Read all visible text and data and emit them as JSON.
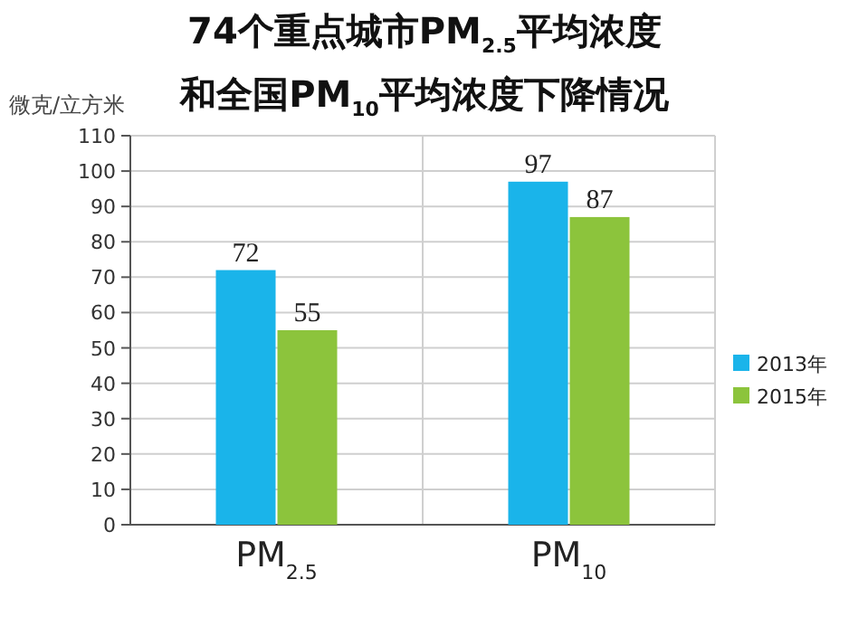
{
  "chart_data": {
    "type": "bar",
    "title": "74个重点城市PM$_{2.5}$平均浓度和全国PM$_{10}$平均浓度下降情况",
    "ylabel": "微克/立方米",
    "categories": [
      "PM$_{2.5}$",
      "PM$_{10}$"
    ],
    "series": [
      {
        "name": "2013年",
        "color": "#1ab4ea",
        "values": [
          72,
          97
        ]
      },
      {
        "name": "2015年",
        "color": "#8cc43c",
        "values": [
          55,
          87
        ]
      }
    ],
    "ylim": [
      0,
      110
    ],
    "yticks": [
      0,
      10,
      20,
      30,
      40,
      50,
      60,
      70,
      80,
      90,
      100,
      110
    ],
    "grid": "y",
    "data_labels": true,
    "legend": "right"
  }
}
